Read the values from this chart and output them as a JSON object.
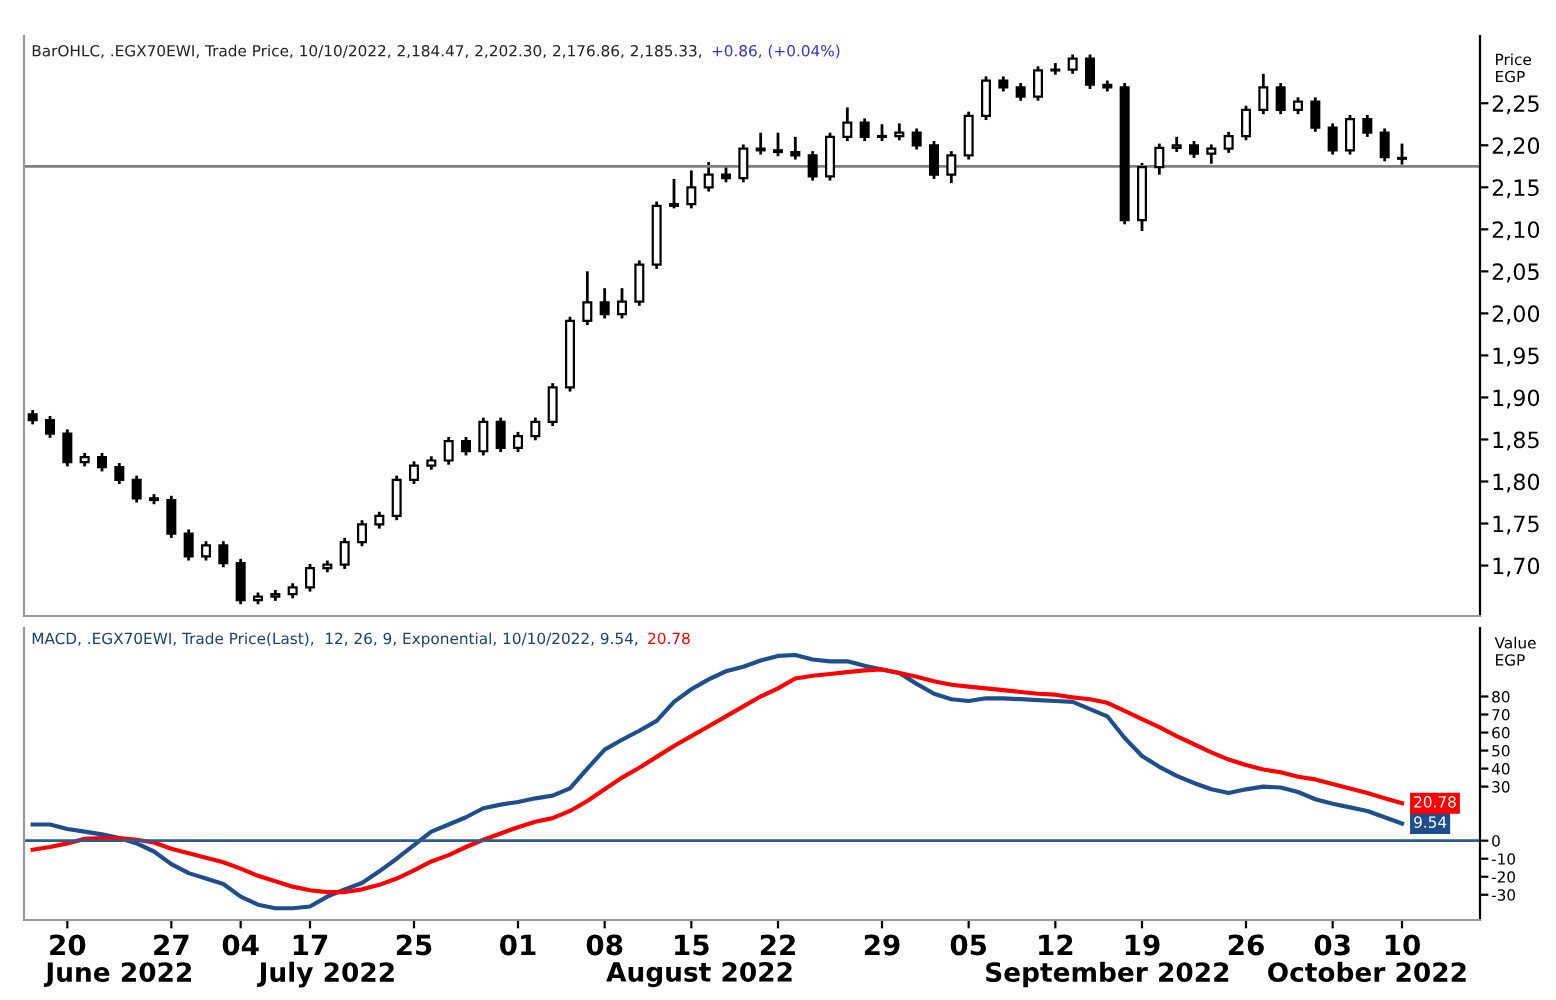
{
  "chart_data": [
    {
      "type": "candlestick",
      "title": "BarOHLC, .EGX70EWI, Trade Price, 10/10/2022, 2,184.47, 2,202.30, 2,176.86, 2,185.33,",
      "annotations": [
        "+0.86, (+0.04%)"
      ],
      "ylabel": "Price\nEGP",
      "categories": [
        null,
        null,
        "20",
        null,
        null,
        null,
        null,
        null,
        "27",
        null,
        null,
        null,
        "04",
        null,
        null,
        null,
        "17",
        null,
        null,
        null,
        null,
        null,
        "25",
        null,
        null,
        null,
        null,
        null,
        "01",
        null,
        null,
        null,
        null,
        "08",
        null,
        null,
        null,
        null,
        "15",
        null,
        null,
        null,
        null,
        "22",
        null,
        null,
        null,
        null,
        null,
        "29",
        null,
        null,
        null,
        null,
        "05",
        null,
        null,
        null,
        null,
        "12",
        null,
        null,
        null,
        null,
        "19",
        null,
        null,
        null,
        null,
        null,
        "26",
        null,
        null,
        null,
        null,
        "03",
        null,
        null,
        null,
        "10"
      ],
      "ohlc": [
        [
          1.88,
          1.885,
          1.868,
          1.873
        ],
        [
          1.873,
          1.878,
          1.852,
          1.857
        ],
        [
          1.857,
          1.862,
          1.818,
          1.823
        ],
        [
          1.823,
          1.834,
          1.818,
          1.829
        ],
        [
          1.829,
          1.834,
          1.812,
          1.817
        ],
        [
          1.817,
          1.822,
          1.797,
          1.802
        ],
        [
          1.802,
          1.807,
          1.775,
          1.78
        ],
        [
          1.78,
          1.785,
          1.773,
          1.778
        ],
        [
          1.778,
          1.783,
          1.733,
          1.738
        ],
        [
          1.738,
          1.743,
          1.706,
          1.711
        ],
        [
          1.711,
          1.729,
          1.706,
          1.724
        ],
        [
          1.724,
          1.729,
          1.698,
          1.703
        ],
        [
          1.703,
          1.708,
          1.654,
          1.659
        ],
        [
          1.659,
          1.668,
          1.654,
          1.663
        ],
        [
          1.663,
          1.671,
          1.658,
          1.666
        ],
        [
          1.666,
          1.679,
          1.661,
          1.674
        ],
        [
          1.674,
          1.702,
          1.669,
          1.697
        ],
        [
          1.697,
          1.706,
          1.692,
          1.701
        ],
        [
          1.701,
          1.733,
          1.696,
          1.728
        ],
        [
          1.728,
          1.754,
          1.723,
          1.749
        ],
        [
          1.749,
          1.764,
          1.744,
          1.759
        ],
        [
          1.759,
          1.807,
          1.754,
          1.802
        ],
        [
          1.802,
          1.824,
          1.797,
          1.819
        ],
        [
          1.819,
          1.83,
          1.814,
          1.825
        ],
        [
          1.825,
          1.853,
          1.82,
          1.848
        ],
        [
          1.848,
          1.853,
          1.831,
          1.836
        ],
        [
          1.836,
          1.876,
          1.831,
          1.871
        ],
        [
          1.871,
          1.876,
          1.835,
          1.84
        ],
        [
          1.84,
          1.859,
          1.835,
          1.854
        ],
        [
          1.854,
          1.876,
          1.849,
          1.871
        ],
        [
          1.871,
          1.917,
          1.866,
          1.912
        ],
        [
          1.912,
          1.996,
          1.907,
          1.991
        ],
        [
          1.991,
          2.05,
          1.986,
          2.013
        ],
        [
          2.013,
          2.03,
          1.994,
          1.999
        ],
        [
          1.999,
          2.03,
          1.994,
          2.014
        ],
        [
          2.014,
          2.063,
          2.009,
          2.058
        ],
        [
          2.058,
          2.133,
          2.053,
          2.128
        ],
        [
          2.128,
          2.16,
          2.125,
          2.13
        ],
        [
          2.13,
          2.17,
          2.125,
          2.15
        ],
        [
          2.15,
          2.18,
          2.145,
          2.165
        ],
        [
          2.165,
          2.175,
          2.156,
          2.161
        ],
        [
          2.161,
          2.201,
          2.156,
          2.196
        ],
        [
          2.196,
          2.215,
          2.189,
          2.194
        ],
        [
          2.194,
          2.215,
          2.187,
          2.192
        ],
        [
          2.192,
          2.21,
          2.183,
          2.188
        ],
        [
          2.188,
          2.193,
          2.158,
          2.163
        ],
        [
          2.163,
          2.215,
          2.158,
          2.21
        ],
        [
          2.21,
          2.245,
          2.205,
          2.227
        ],
        [
          2.227,
          2.232,
          2.205,
          2.21
        ],
        [
          2.21,
          2.225,
          2.205,
          2.211
        ],
        [
          2.211,
          2.226,
          2.206,
          2.215
        ],
        [
          2.215,
          2.22,
          2.195,
          2.2
        ],
        [
          2.2,
          2.205,
          2.16,
          2.165
        ],
        [
          2.165,
          2.193,
          2.155,
          2.188
        ],
        [
          2.188,
          2.24,
          2.183,
          2.235
        ],
        [
          2.235,
          2.282,
          2.23,
          2.277
        ],
        [
          2.277,
          2.282,
          2.264,
          2.269
        ],
        [
          2.269,
          2.274,
          2.253,
          2.258
        ],
        [
          2.258,
          2.294,
          2.253,
          2.289
        ],
        [
          2.289,
          2.298,
          2.284,
          2.29
        ],
        [
          2.29,
          2.308,
          2.285,
          2.303
        ],
        [
          2.303,
          2.308,
          2.267,
          2.272
        ],
        [
          2.272,
          2.277,
          2.264,
          2.269
        ],
        [
          2.269,
          2.274,
          2.106,
          2.111
        ],
        [
          2.111,
          2.179,
          2.098,
          2.174
        ],
        [
          2.174,
          2.202,
          2.165,
          2.197
        ],
        [
          2.197,
          2.21,
          2.192,
          2.2
        ],
        [
          2.2,
          2.205,
          2.185,
          2.19
        ],
        [
          2.19,
          2.201,
          2.178,
          2.196
        ],
        [
          2.196,
          2.216,
          2.191,
          2.211
        ],
        [
          2.211,
          2.247,
          2.206,
          2.242
        ],
        [
          2.242,
          2.285,
          2.237,
          2.269
        ],
        [
          2.269,
          2.274,
          2.237,
          2.242
        ],
        [
          2.242,
          2.257,
          2.237,
          2.252
        ],
        [
          2.252,
          2.257,
          2.216,
          2.221
        ],
        [
          2.221,
          2.226,
          2.189,
          2.194
        ],
        [
          2.194,
          2.236,
          2.189,
          2.231
        ],
        [
          2.231,
          2.236,
          2.21,
          2.215
        ],
        [
          2.215,
          2.22,
          2.181,
          2.186
        ],
        [
          2.184,
          2.202,
          2.177,
          2.185
        ]
      ],
      "color": "#000000",
      "ylim": [
        1.64,
        2.33
      ],
      "yticks": [
        {
          "value": 1.7,
          "label": "1,70"
        },
        {
          "value": 1.75,
          "label": "1,75"
        },
        {
          "value": 1.8,
          "label": "1,80"
        },
        {
          "value": 1.85,
          "label": "1,85"
        },
        {
          "value": 1.9,
          "label": "1,90"
        },
        {
          "value": 1.95,
          "label": "1,95"
        },
        {
          "value": 2.0,
          "label": "2,00"
        },
        {
          "value": 2.05,
          "label": "2,05"
        },
        {
          "value": 2.1,
          "label": "2,10"
        },
        {
          "value": 2.15,
          "label": "2,15"
        },
        {
          "value": 2.2,
          "label": "2,20"
        },
        {
          "value": 2.25,
          "label": "2,25"
        }
      ],
      "ref_lines": [
        {
          "axis": "y",
          "value": 2.175,
          "color": "#808080"
        }
      ],
      "tick_labels": "y"
    },
    {
      "type": "line",
      "title": "MACD, .EGX70EWI, Trade Price(Last),  12, 26, 9, Exponential, 10/10/2022, 9.54,",
      "annotations": [
        "20.78",
        "June 2022",
        "July 2022",
        "August 2022",
        "September 2022",
        "October 2022"
      ],
      "ylabel": "Value\nEGP",
      "categories": [
        null,
        null,
        "20",
        null,
        null,
        null,
        null,
        null,
        "27",
        null,
        null,
        null,
        "04",
        null,
        null,
        null,
        "17",
        null,
        null,
        null,
        null,
        null,
        "25",
        null,
        null,
        null,
        null,
        null,
        "01",
        null,
        null,
        null,
        null,
        "08",
        null,
        null,
        null,
        null,
        "15",
        null,
        null,
        null,
        null,
        "22",
        null,
        null,
        null,
        null,
        null,
        "29",
        null,
        null,
        null,
        null,
        "05",
        null,
        null,
        null,
        null,
        "12",
        null,
        null,
        null,
        null,
        "19",
        null,
        null,
        null,
        null,
        null,
        "26",
        null,
        null,
        null,
        null,
        "03",
        null,
        null,
        null,
        "10"
      ],
      "series": [
        {
          "color": "#1f4e8c",
          "values": [
            9,
            9,
            6.5,
            5,
            3.5,
            1.5,
            -1.5,
            -6,
            -13,
            -18,
            -21,
            -24,
            -31,
            -35.5,
            -37.5,
            -37.5,
            -36.5,
            -31,
            -27,
            -23.5,
            -17,
            -10,
            -2.5,
            5,
            9,
            13,
            18,
            20,
            21.5,
            23.5,
            25,
            29,
            40,
            50.5,
            56,
            61,
            66.5,
            77,
            84,
            89.5,
            94,
            96.5,
            100,
            102.5,
            103,
            100.5,
            99.5,
            99.5,
            97,
            95,
            93,
            87,
            81.5,
            78.5,
            77.5,
            79,
            79,
            78.5,
            78,
            77.5,
            77,
            73,
            69,
            57,
            47,
            41,
            36,
            32,
            28.5,
            26.5,
            28.5,
            30,
            29.5,
            27,
            23,
            20.5,
            18.5,
            16.5,
            13,
            9.54
          ],
          "value_labels": [
            null,
            null,
            null,
            null,
            null,
            null,
            null,
            null,
            null,
            null,
            null,
            null,
            null,
            null,
            null,
            null,
            null,
            null,
            null,
            null,
            null,
            null,
            null,
            null,
            null,
            null,
            null,
            null,
            null,
            null,
            null,
            null,
            null,
            null,
            null,
            null,
            null,
            null,
            null,
            null,
            null,
            null,
            null,
            null,
            null,
            null,
            null,
            null,
            null,
            null,
            null,
            null,
            null,
            null,
            null,
            null,
            null,
            null,
            null,
            null,
            null,
            null,
            null,
            null,
            null,
            null,
            null,
            null,
            null,
            null,
            null,
            null,
            null,
            null,
            null,
            null,
            null,
            null,
            null,
            "9.54"
          ]
        },
        {
          "color": "#ff0000",
          "values": [
            -5,
            -3.5,
            -1.5,
            1,
            1.5,
            1.5,
            0.5,
            -1,
            -4.5,
            -7,
            -9.5,
            -12,
            -15.5,
            -19.5,
            -22.5,
            -25.5,
            -27.5,
            -28.5,
            -28.5,
            -27,
            -24.5,
            -21,
            -16.5,
            -11.5,
            -8,
            -3.5,
            0.5,
            4,
            7.5,
            10.5,
            12.5,
            16.5,
            22,
            28.5,
            35,
            40.5,
            46.5,
            52.5,
            58,
            63.5,
            69,
            74.5,
            80,
            84.5,
            90,
            91.5,
            92.5,
            93.5,
            94.5,
            95,
            93,
            91,
            88.5,
            86.5,
            85.5,
            84.5,
            83.5,
            82.5,
            81.5,
            81,
            79.5,
            78.5,
            76.5,
            72,
            67.5,
            63,
            58,
            53.5,
            49,
            45,
            42,
            39.5,
            38,
            35.5,
            34,
            31.5,
            29,
            26.5,
            23.5,
            20.78
          ],
          "value_labels": [
            null,
            null,
            null,
            null,
            null,
            null,
            null,
            null,
            null,
            null,
            null,
            null,
            null,
            null,
            null,
            null,
            null,
            null,
            null,
            null,
            null,
            null,
            null,
            null,
            null,
            null,
            null,
            null,
            null,
            null,
            null,
            null,
            null,
            null,
            null,
            null,
            null,
            null,
            null,
            null,
            null,
            null,
            null,
            null,
            null,
            null,
            null,
            null,
            null,
            null,
            null,
            null,
            null,
            null,
            null,
            null,
            null,
            null,
            null,
            null,
            null,
            null,
            null,
            null,
            null,
            null,
            null,
            null,
            null,
            null,
            null,
            null,
            null,
            null,
            null,
            null,
            null,
            null,
            null,
            "20.78"
          ]
        }
      ],
      "ylim": [
        -44,
        118
      ],
      "yticks": [
        -30,
        -20,
        -10,
        0,
        30,
        40,
        50,
        60,
        70,
        80
      ],
      "ref_lines": [
        {
          "axis": "y",
          "value": 0,
          "color": "#2e5c8a"
        }
      ]
    }
  ]
}
